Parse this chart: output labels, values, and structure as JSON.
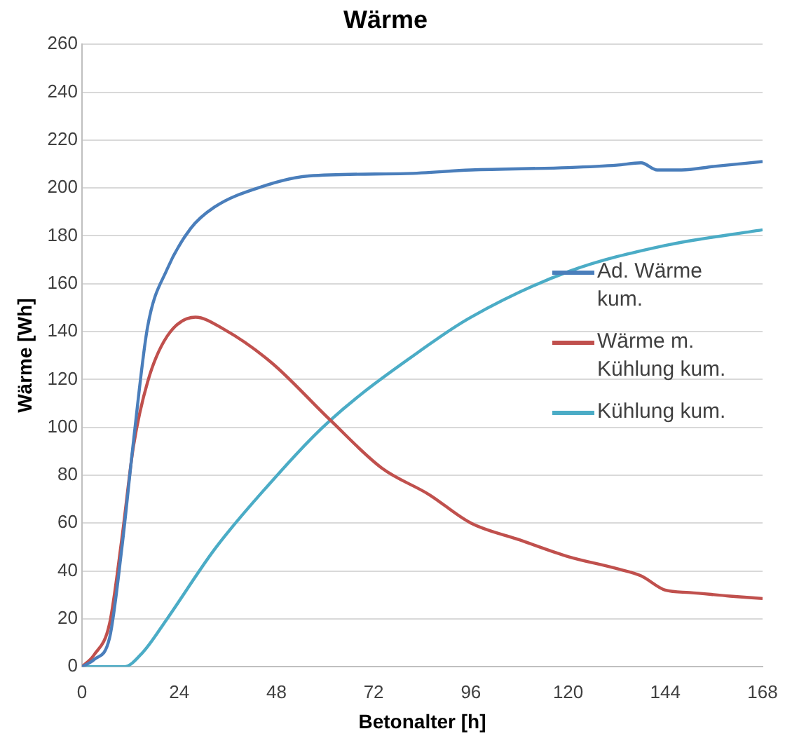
{
  "chart_data": {
    "type": "line",
    "title": "Wärme",
    "xlabel": "Betonalter [h]",
    "ylabel": "Wärme [Wh]",
    "xlim": [
      0,
      168
    ],
    "xticks": [
      0,
      24,
      48,
      72,
      96,
      120,
      144,
      168
    ],
    "ylim": [
      0,
      260
    ],
    "yticks": [
      0,
      20,
      40,
      60,
      80,
      100,
      120,
      140,
      160,
      180,
      200,
      220,
      240,
      260
    ],
    "grid": "y",
    "legend": "right",
    "marker": "none",
    "line_style": "solid",
    "series": [
      {
        "name": "Ad. Wärme kum.",
        "color": "#4a7ebb",
        "x": [
          0,
          3,
          6.8,
          9.8,
          12.7,
          16.2,
          21,
          26.8,
          32.7,
          44.5,
          56,
          80,
          96,
          120,
          132,
          138,
          142,
          148,
          156,
          168
        ],
        "values": [
          0,
          3,
          12,
          49,
          94,
          142,
          166,
          183,
          192,
          200.6,
          205,
          206,
          207.5,
          208.5,
          209.5,
          210.5,
          207.5,
          207.5,
          209,
          211
        ]
      },
      {
        "name": "Wärme m. Kühlung kum.",
        "color": "#c0504d",
        "x": [
          0,
          3,
          6.8,
          9.8,
          12.7,
          16.2,
          21,
          28,
          35,
          46.8,
          61,
          74,
          85.6,
          96,
          108,
          120,
          132,
          138,
          144,
          150,
          160,
          168
        ],
        "values": [
          0,
          5,
          18,
          53,
          92,
          119,
          138,
          146,
          141,
          127,
          103.5,
          83,
          72,
          60,
          53,
          46,
          41,
          38,
          32,
          31,
          29.5,
          28.5
        ]
      },
      {
        "name": "Kühlung kum.",
        "color": "#4bacc6",
        "x": [
          0,
          6,
          10.4,
          15,
          21,
          32.7,
          44.5,
          61,
          85.6,
          96,
          120,
          144,
          168
        ],
        "values": [
          0,
          0,
          0,
          6,
          20,
          49,
          73,
          102.5,
          134.5,
          146,
          165,
          176,
          182.5
        ]
      }
    ]
  }
}
